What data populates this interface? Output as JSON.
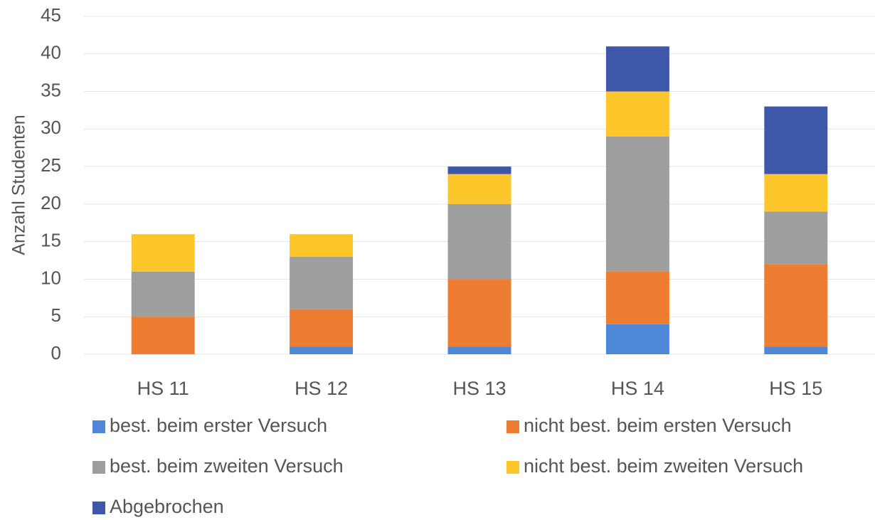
{
  "chart_data": {
    "type": "stacked_bar",
    "y_label": "Anzahl Studenten",
    "categories": [
      "HS 11",
      "HS 12",
      "HS 13",
      "HS 14",
      "HS 15"
    ],
    "series": [
      {
        "name": "best. beim erster Versuch",
        "color": "#4e86d8",
        "values": [
          0,
          1,
          1,
          4,
          1
        ]
      },
      {
        "name": "nicht best. beim ersten Versuch",
        "color": "#ef7d31",
        "values": [
          5,
          5,
          9,
          7,
          11
        ]
      },
      {
        "name": "best. beim zweiten Versuch",
        "color": "#9e9e9e",
        "values": [
          6,
          7,
          10,
          18,
          7
        ]
      },
      {
        "name": "nicht best. beim zweiten Versuch",
        "color": "#fdc62a",
        "values": [
          5,
          3,
          4,
          6,
          5
        ]
      },
      {
        "name": "Abgebrochen",
        "color": "#3d58a8",
        "values": [
          0,
          0,
          1,
          6,
          9
        ]
      }
    ],
    "ylim": [
      0,
      45
    ],
    "yticks": [
      0,
      5,
      10,
      15,
      20,
      25,
      30,
      35,
      40,
      45
    ],
    "grid": true
  }
}
